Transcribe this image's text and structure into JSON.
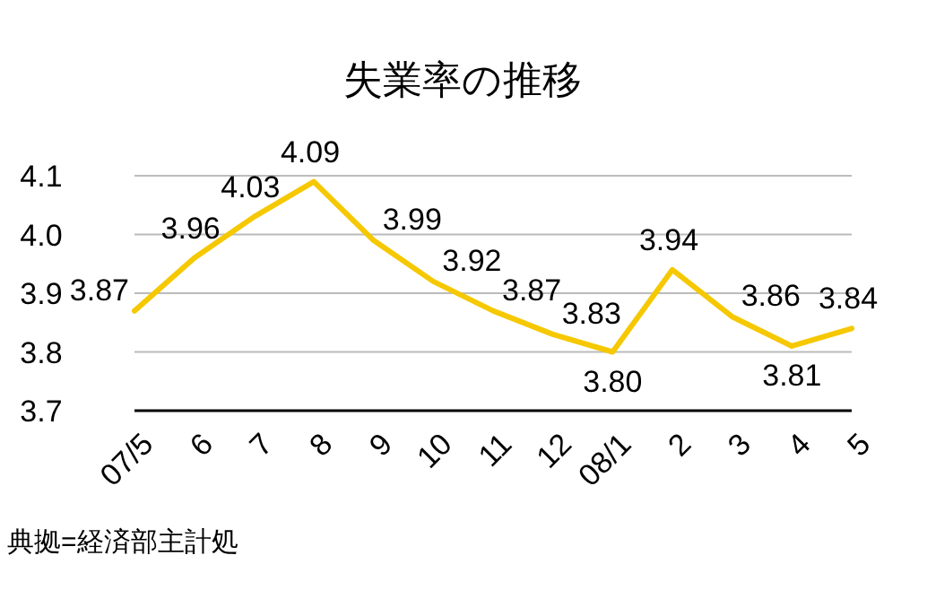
{
  "chart_data": {
    "type": "line",
    "title": "失業率の推移",
    "categories": [
      "07/5",
      "6",
      "7",
      "8",
      "9",
      "10",
      "11",
      "12",
      "08/1",
      "2",
      "3",
      "4",
      "5"
    ],
    "values": [
      3.87,
      3.96,
      4.03,
      4.09,
      3.99,
      3.92,
      3.87,
      3.83,
      3.8,
      3.94,
      3.86,
      3.81,
      3.84
    ],
    "value_labels": [
      "3.87",
      "3.96",
      "4.03",
      "4.09",
      "3.99",
      "3.92",
      "3.87",
      "3.83",
      "3.80",
      "3.94",
      "3.86",
      "3.81",
      "3.84"
    ],
    "color": "#f5c800",
    "ylim": [
      3.7,
      4.1
    ],
    "yticks": [
      3.7,
      3.8,
      3.9,
      {
        "value": 4,
        "label": "4.0"
      },
      4.1
    ],
    "grid": "y",
    "marker": "none",
    "line_style": "solid",
    "annotations": [
      "典拠=経済部主計処"
    ]
  }
}
